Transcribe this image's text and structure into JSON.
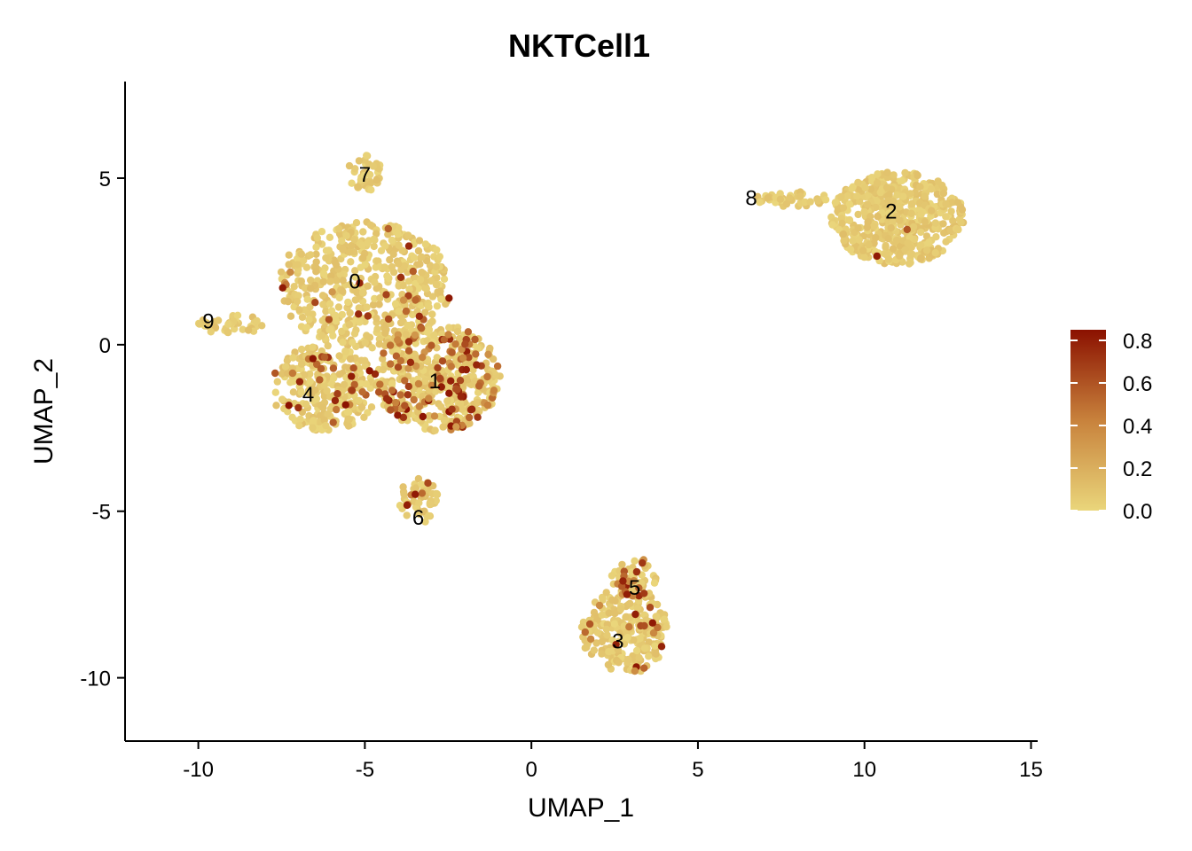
{
  "chart_data": {
    "type": "scatter",
    "title": "NKTCell1",
    "xlabel": "UMAP_1",
    "ylabel": "UMAP_2",
    "xlim": [
      -12.2,
      15.2
    ],
    "ylim": [
      -11.9,
      7.9
    ],
    "x_ticks": [
      {
        "value": -10,
        "label": "-10"
      },
      {
        "value": -5,
        "label": "-5"
      },
      {
        "value": 0,
        "label": "0"
      },
      {
        "value": 5,
        "label": "5"
      },
      {
        "value": 10,
        "label": "10"
      },
      {
        "value": 15,
        "label": "15"
      }
    ],
    "y_ticks": [
      {
        "value": 5,
        "label": "5"
      },
      {
        "value": 0,
        "label": "0"
      },
      {
        "value": -5,
        "label": "-5"
      },
      {
        "value": -10,
        "label": "-10"
      }
    ],
    "grid": false,
    "legend_position": "right",
    "colorbar": {
      "min": 0.0,
      "max": 0.85,
      "ticks": [
        {
          "value": 0.0,
          "label": "0.0"
        },
        {
          "value": 0.2,
          "label": "0.2"
        },
        {
          "value": 0.4,
          "label": "0.4"
        },
        {
          "value": 0.6,
          "label": "0.6"
        },
        {
          "value": 0.8,
          "label": "0.8"
        }
      ],
      "color_low": "#EAD67B",
      "color_mid": "#C8823C",
      "color_high": "#8B1100"
    },
    "clusters": [
      {
        "label": "0",
        "x": -5.3,
        "y": 1.9
      },
      {
        "label": "1",
        "x": -2.9,
        "y": -1.1
      },
      {
        "label": "2",
        "x": 10.8,
        "y": 4.0
      },
      {
        "label": "3",
        "x": 2.6,
        "y": -8.9
      },
      {
        "label": "4",
        "x": -6.7,
        "y": -1.5
      },
      {
        "label": "5",
        "x": 3.1,
        "y": -7.3
      },
      {
        "label": "6",
        "x": -3.4,
        "y": -5.2
      },
      {
        "label": "7",
        "x": -5.0,
        "y": 5.1
      },
      {
        "label": "8",
        "x": 6.6,
        "y": 4.4
      },
      {
        "label": "9",
        "x": -9.7,
        "y": 0.7
      }
    ]
  }
}
